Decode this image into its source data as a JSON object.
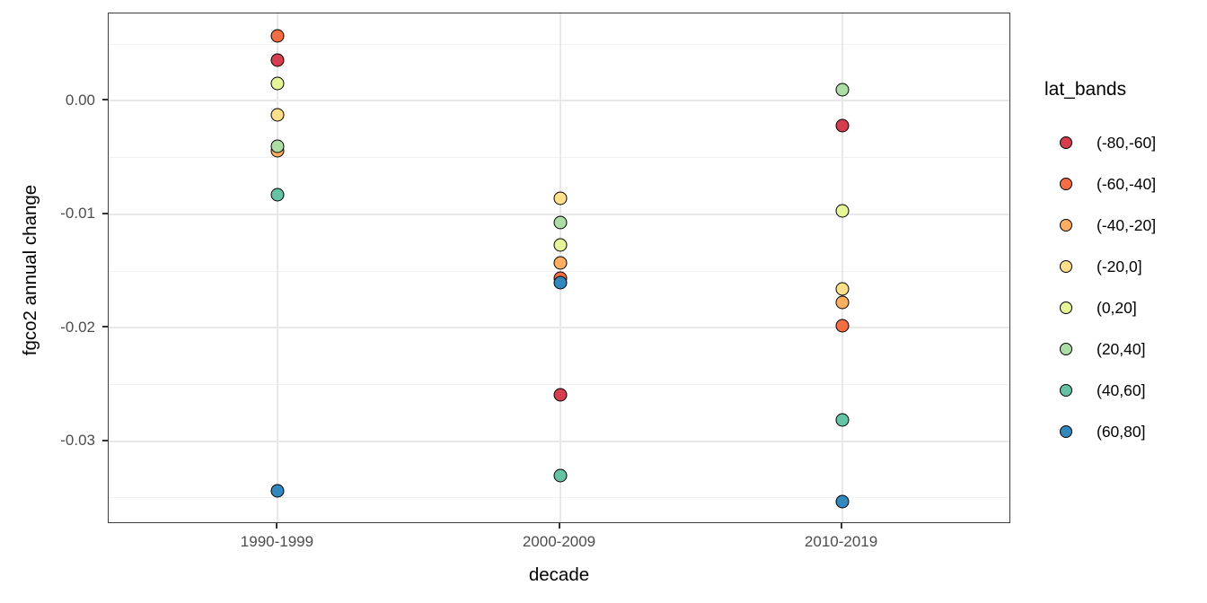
{
  "figure": {
    "background": "#ffffff",
    "panel_border_color": "#3c3c3c",
    "grid_major_color": "#e8e8e8",
    "grid_minor_color": "#f1f1f1",
    "axis_text_color": "#4d4d4d",
    "point_stroke_color": "#000000"
  },
  "chart_data": {
    "type": "scatter",
    "title": "",
    "xlabel": "decade",
    "ylabel": "fgco2 annual change",
    "categories": [
      "1990-1999",
      "2000-2009",
      "2010-2019"
    ],
    "y_ticks": [
      0,
      -0.01,
      -0.02,
      -0.03
    ],
    "y_tick_labels": [
      "0.00",
      "-0.01",
      "-0.02",
      "-0.03"
    ],
    "y_minor_ticks": [
      0.005,
      -0.005,
      -0.015,
      -0.025,
      -0.035
    ],
    "ylim": [
      -0.0373,
      0.0077
    ],
    "grid": true,
    "legend": {
      "title": "lat_bands",
      "position": "right"
    },
    "series": [
      {
        "name": "(-80,-60]",
        "color": "#d53e4f",
        "values": [
          0.0036,
          -0.0259,
          -0.0022
        ]
      },
      {
        "name": "(-60,-40]",
        "color": "#f46d43",
        "values": [
          0.0057,
          -0.0156,
          -0.0198
        ]
      },
      {
        "name": "(-40,-20]",
        "color": "#fdae61",
        "values": [
          -0.0044,
          -0.0143,
          -0.0178
        ]
      },
      {
        "name": "(-20,0]",
        "color": "#fee08b",
        "values": [
          -0.0012,
          -0.0086,
          -0.0166
        ]
      },
      {
        "name": "(0,20]",
        "color": "#e6f598",
        "values": [
          0.0015,
          -0.0127,
          -0.0097
        ]
      },
      {
        "name": "(20,40]",
        "color": "#abdda4",
        "values": [
          -0.004,
          -0.0107,
          0.001
        ]
      },
      {
        "name": "(40,60]",
        "color": "#66c2a5",
        "values": [
          -0.0083,
          -0.033,
          -0.0281
        ]
      },
      {
        "name": "(60,80]",
        "color": "#3288bd",
        "values": [
          -0.0344,
          -0.016,
          -0.0353
        ]
      }
    ]
  }
}
